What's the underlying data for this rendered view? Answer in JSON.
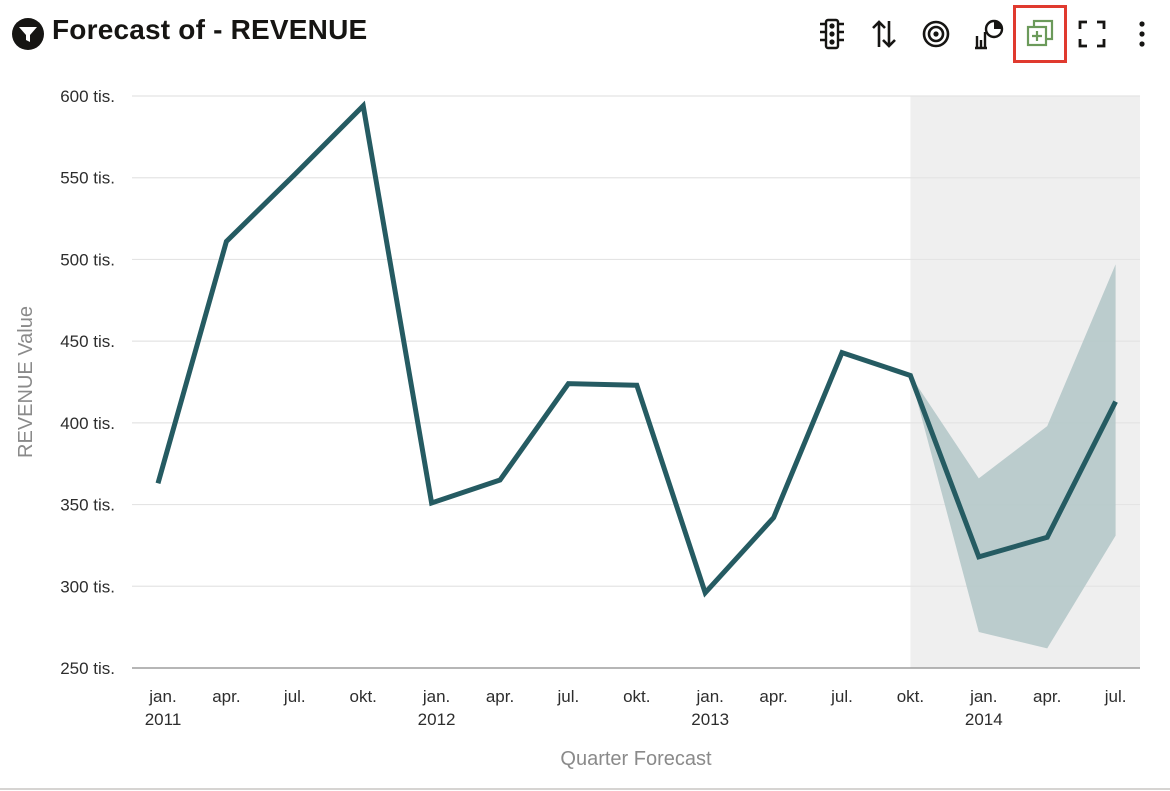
{
  "header": {
    "title": "Forecast of - REVENUE",
    "icons": [
      "filter-icon",
      "traffic-light-icon",
      "sort-icon",
      "target-icon",
      "chart-pie-icon",
      "add-copy-icon",
      "fullscreen-icon",
      "more-vertical-icon"
    ],
    "highlight_color": "#e03a2f"
  },
  "colors": {
    "line": "#255b62",
    "band": "#b7c9ca",
    "forecast_bg": "#efefef",
    "grid": "#e4e4e4",
    "axis": "#9e9e9e",
    "add_icon": "#6b9a5a"
  },
  "chart_data": {
    "type": "line",
    "title": "Forecast of - REVENUE",
    "xlabel": "Quarter Forecast",
    "ylabel": "REVENUE Value",
    "ylim": [
      250000,
      600000
    ],
    "y_ticks": [
      {
        "value": 600000,
        "label": "600 tis."
      },
      {
        "value": 550000,
        "label": "550 tis."
      },
      {
        "value": 500000,
        "label": "500 tis."
      },
      {
        "value": 450000,
        "label": "450 tis."
      },
      {
        "value": 400000,
        "label": "400 tis."
      },
      {
        "value": 350000,
        "label": "350 tis."
      },
      {
        "value": 300000,
        "label": "300 tis."
      },
      {
        "value": 250000,
        "label": "250 tis."
      }
    ],
    "categories": [
      "jan. 2011",
      "apr. 2011",
      "jul. 2011",
      "okt. 2011",
      "jan. 2012",
      "apr. 2012",
      "jul. 2012",
      "okt. 2012",
      "jan. 2013",
      "apr. 2013",
      "jul. 2013",
      "okt. 2013",
      "jan. 2014",
      "apr. 2014",
      "jul. 2014"
    ],
    "x_tick_labels": [
      {
        "month": "jan.",
        "year": "2011"
      },
      {
        "month": "apr.",
        "year": ""
      },
      {
        "month": "jul.",
        "year": ""
      },
      {
        "month": "okt.",
        "year": ""
      },
      {
        "month": "jan.",
        "year": "2012"
      },
      {
        "month": "apr.",
        "year": ""
      },
      {
        "month": "jul.",
        "year": ""
      },
      {
        "month": "okt.",
        "year": ""
      },
      {
        "month": "jan.",
        "year": "2013"
      },
      {
        "month": "apr.",
        "year": ""
      },
      {
        "month": "jul.",
        "year": ""
      },
      {
        "month": "okt.",
        "year": ""
      },
      {
        "month": "jan.",
        "year": "2014"
      },
      {
        "month": "apr.",
        "year": ""
      },
      {
        "month": "jul.",
        "year": ""
      }
    ],
    "series": [
      {
        "values": [
          363000,
          511000,
          552000,
          594000,
          351000,
          365000,
          424000,
          423000,
          296000,
          342000,
          443000,
          429000,
          318000,
          330000,
          413000
        ]
      }
    ],
    "forecast_start_index": 11,
    "forecast_band": {
      "upper": [
        429000,
        366000,
        398000,
        497000
      ],
      "lower": [
        429000,
        272000,
        262000,
        331000
      ]
    },
    "grid": true,
    "legend": "none"
  }
}
